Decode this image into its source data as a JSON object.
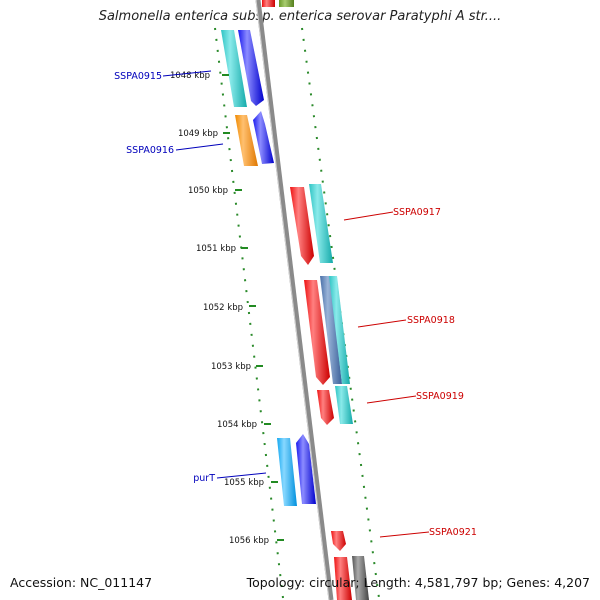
{
  "title": "Salmonella enterica subsp. enterica serovar Paratyphi A str....",
  "footer": {
    "accession": "Accession: NC_011147",
    "topology": "Topology: circular; Length: 4,581,797 bp; Genes: 4,207"
  },
  "colors": {
    "forward_label": "#0000bb",
    "reverse_label": "#cc0000",
    "tick": "#228b22",
    "backbone": "#8a8a8a"
  },
  "scale_ticks": [
    {
      "label": "1048 kbp"
    },
    {
      "label": "1049 kbp"
    },
    {
      "label": "1050 kbp"
    },
    {
      "label": "1051 kbp"
    },
    {
      "label": "1052 kbp"
    },
    {
      "label": "1053 kbp"
    },
    {
      "label": "1054 kbp"
    },
    {
      "label": "1055 kbp"
    },
    {
      "label": "1056 kbp"
    }
  ],
  "gene_labels": [
    {
      "name": "SSPA0915",
      "strand": "forward"
    },
    {
      "name": "SSPA0916",
      "strand": "forward"
    },
    {
      "name": "SSPA0917",
      "strand": "reverse"
    },
    {
      "name": "SSPA0918",
      "strand": "reverse"
    },
    {
      "name": "SSPA0919",
      "strand": "reverse"
    },
    {
      "name": "purT",
      "strand": "forward"
    },
    {
      "name": "SSPA0921",
      "strand": "reverse"
    }
  ]
}
